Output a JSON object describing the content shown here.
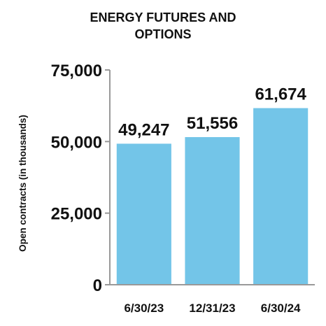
{
  "chart_data": {
    "type": "bar",
    "title_lines": [
      "ENERGY FUTURES AND",
      "OPTIONS"
    ],
    "xlabel": "",
    "ylabel": "Open contracts (in thousands)",
    "categories": [
      "6/30/23",
      "12/31/23",
      "6/30/24"
    ],
    "values": [
      49247,
      51556,
      61674
    ],
    "data_labels": [
      "49,247",
      "51,556",
      "61,674"
    ],
    "yticks": [
      0,
      25000,
      50000,
      75000
    ],
    "ytick_labels": [
      "0",
      "25,000",
      "50,000",
      "75,000"
    ],
    "ylim": [
      0,
      75000
    ],
    "bar_color": "#73c5e8",
    "axis_color": "#999999",
    "grid": false,
    "legend": "none"
  }
}
